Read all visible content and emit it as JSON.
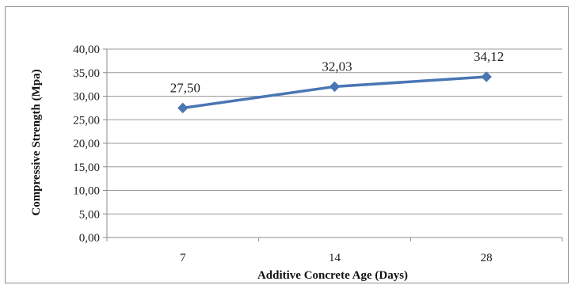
{
  "chart_data": {
    "type": "line",
    "categories": [
      "7",
      "14",
      "28"
    ],
    "series": [
      {
        "values": [
          27.5,
          32.03,
          34.12
        ],
        "color": "#4a76b4",
        "marker": "diamond"
      }
    ],
    "data_labels": [
      "27,50",
      "32,03",
      "34,12"
    ],
    "title": "",
    "xlabel": "Additive Concrete Age (Days)",
    "ylabel": "Compressive Strength (Mpa)",
    "ylim": [
      0,
      40
    ],
    "yticks": [
      0,
      5,
      10,
      15,
      20,
      25,
      30,
      35,
      40
    ],
    "ytick_labels": [
      "0,00",
      "5,00",
      "10,00",
      "15,00",
      "20,00",
      "25,00",
      "30,00",
      "35,00",
      "40,00"
    ],
    "grid": true,
    "legend": "none"
  }
}
